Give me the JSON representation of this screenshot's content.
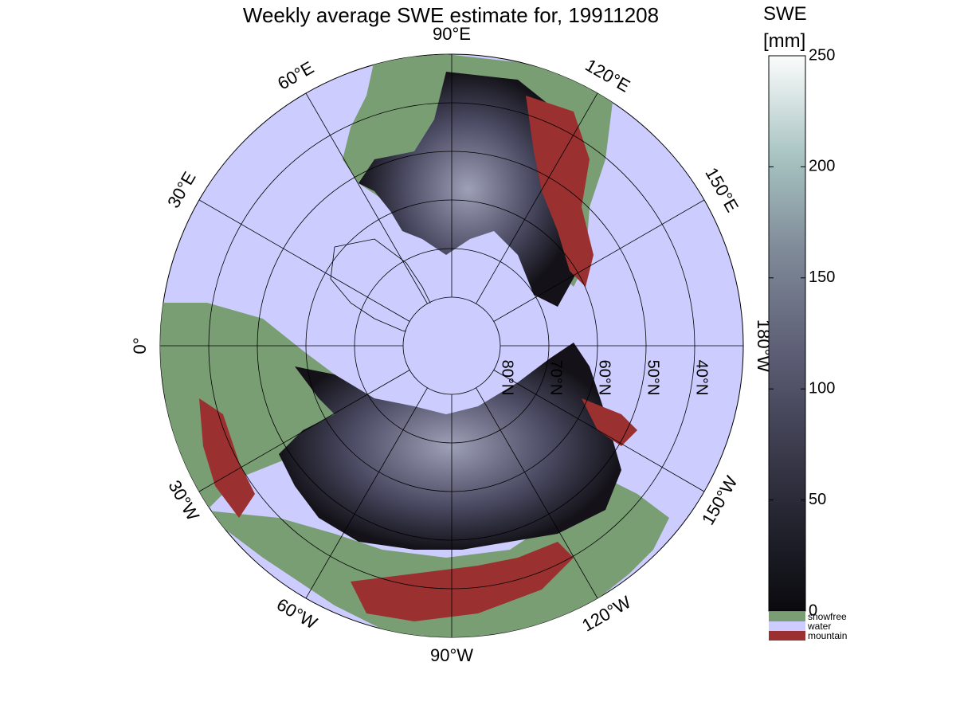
{
  "title": "Weekly average SWE estimate for, 19911208",
  "map": {
    "longitude_labels": [
      {
        "deg": -90,
        "label": "90°W"
      },
      {
        "deg": -60,
        "label": "60°W"
      },
      {
        "deg": -30,
        "label": "30°W"
      },
      {
        "deg": 0,
        "label": "0°"
      },
      {
        "deg": -120,
        "label": "120°W"
      },
      {
        "deg": -150,
        "label": "150°W"
      },
      {
        "deg": 180,
        "label": "180°W"
      },
      {
        "deg": 30,
        "label": "30°E"
      },
      {
        "deg": 60,
        "label": "60°E"
      },
      {
        "deg": 90,
        "label": "90°E"
      },
      {
        "deg": 120,
        "label": "120°E"
      },
      {
        "deg": 150,
        "label": "150°E"
      }
    ],
    "latitude_labels": [
      {
        "lat": 80,
        "label": "80°N"
      },
      {
        "lat": 70,
        "label": "70°N"
      },
      {
        "lat": 60,
        "label": "60°N"
      },
      {
        "lat": 50,
        "label": "50°N"
      },
      {
        "lat": 40,
        "label": "40°N"
      }
    ],
    "colors": {
      "water": "#ccccff",
      "snowfree": "#7a9e74",
      "mountain": "#9b3030",
      "snow_low": "#141218",
      "snow_mid": "#484860",
      "snow_high": "#9ea0b8"
    }
  },
  "colorbar": {
    "title_line1": "SWE",
    "title_line2": "[mm]",
    "ticks": [
      {
        "value": 0,
        "label": "0"
      },
      {
        "value": 50,
        "label": "50"
      },
      {
        "value": 100,
        "label": "100"
      },
      {
        "value": 150,
        "label": "150"
      },
      {
        "value": 200,
        "label": "200"
      },
      {
        "value": 250,
        "label": "250"
      }
    ],
    "range": [
      0,
      250
    ],
    "categories": [
      {
        "label": "snowfree",
        "color": "#7a9e74"
      },
      {
        "label": "water",
        "color": "#ccccff"
      },
      {
        "label": "mountain",
        "color": "#9b3030"
      }
    ]
  }
}
